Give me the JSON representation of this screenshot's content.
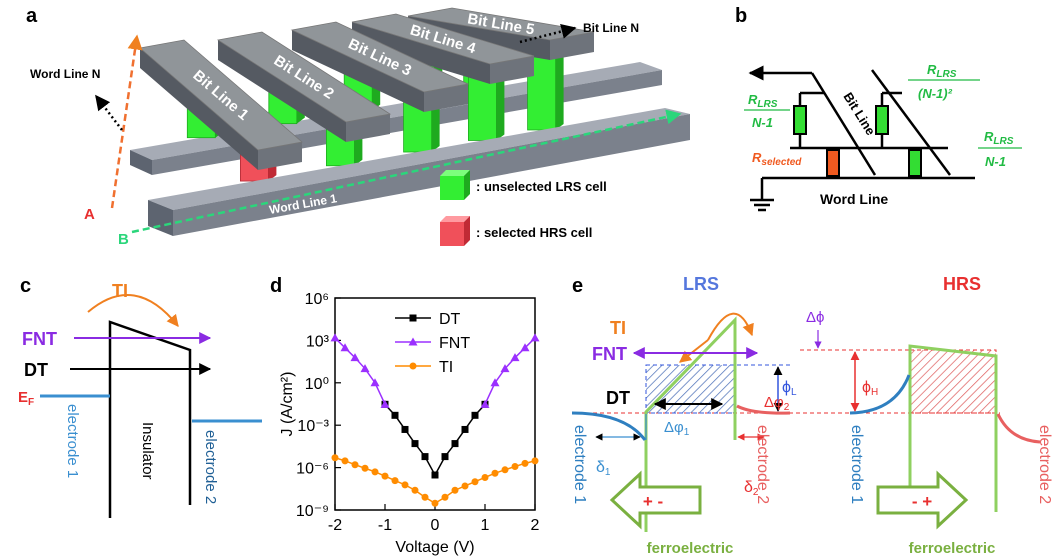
{
  "panel_a": {
    "label": "a",
    "bit_lines": [
      "Bit Line 1",
      "Bit Line 2",
      "Bit Line 3",
      "Bit Line 4",
      "Bit Line 5"
    ],
    "word_line_1": "Word Line 1",
    "word_line_n": "Word Line N",
    "bit_line_n": "Bit Line N",
    "line_a": "A",
    "line_b": "B",
    "legend": {
      "lrs": ": unselected LRS cell",
      "hrs": ": selected HRS cell"
    }
  },
  "panel_b": {
    "label": "b",
    "bit_line": "Bit Line",
    "word_line": "Word Line",
    "fractions": [
      {
        "numerator": {
          "symbol": "R",
          "subscript": "LRS"
        },
        "denominator": "N-1"
      },
      {
        "numerator": {
          "symbol": "R",
          "subscript": "LRS"
        },
        "denominator": "(N-1)²"
      },
      {
        "numerator": {
          "symbol": "R",
          "subscript": "LRS"
        },
        "denominator": "N-1"
      }
    ],
    "r_selected": {
      "symbol": "R",
      "subscript": "selected"
    }
  },
  "panel_c": {
    "label": "c",
    "ti": "TI",
    "fnt": "FNT",
    "dt": "DT",
    "fermi": {
      "symbol": "E",
      "subscript": "F"
    },
    "electrode_1": "electrode 1",
    "insulator": "Insulator",
    "electrode_2": "electrode 2"
  },
  "panel_d": {
    "label": "d"
  },
  "chart_data": {
    "type": "line",
    "x_label": "Voltage (V)",
    "y_label": "J (A/cm²)",
    "x": [
      -2,
      -1.8,
      -1.6,
      -1.4,
      -1.2,
      -1,
      -0.8,
      -0.6,
      -0.4,
      -0.2,
      0,
      0.2,
      0.4,
      0.6,
      0.8,
      1,
      1.2,
      1.4,
      1.6,
      1.8,
      2
    ],
    "series": [
      {
        "name": "DT",
        "color": "#000000",
        "marker": "square",
        "values": [
          null,
          null,
          null,
          null,
          null,
          0.03,
          0.005,
          0.0005,
          5e-05,
          6e-06,
          3e-07,
          6e-06,
          5e-05,
          0.0005,
          0.005,
          0.03,
          null,
          null,
          null,
          null,
          null
        ]
      },
      {
        "name": "FNT",
        "color": "#9b30ff",
        "marker": "triangle",
        "values": [
          1500,
          300,
          60,
          10,
          1,
          0.03,
          null,
          null,
          null,
          null,
          null,
          null,
          null,
          null,
          null,
          0.03,
          1,
          10,
          60,
          300,
          1500
        ]
      },
      {
        "name": "TI",
        "color": "#ff8c00",
        "marker": "circle",
        "values": [
          5e-06,
          3e-06,
          1.6e-06,
          9e-07,
          5e-07,
          2.5e-07,
          1.2e-07,
          6e-08,
          2.5e-08,
          8e-09,
          3e-09,
          8e-09,
          2.5e-08,
          5e-08,
          1e-07,
          2e-07,
          4e-07,
          7e-07,
          1.2e-06,
          2e-06,
          3e-06
        ]
      }
    ],
    "xlim": [
      -2,
      2
    ],
    "xticks": [
      -2,
      -1,
      0,
      1,
      2
    ],
    "ylim": [
      1e-09,
      1000000
    ],
    "y_scale": "log",
    "yticks": [
      {
        "value": 1e-09,
        "label": "10⁻⁹"
      },
      {
        "value": 1e-06,
        "label": "10⁻⁶"
      },
      {
        "value": 0.001,
        "label": "10⁻³"
      },
      {
        "value": 1,
        "label": "10⁰"
      },
      {
        "value": 1000,
        "label": "10³"
      },
      {
        "value": 1000000,
        "label": "10⁶"
      }
    ],
    "legend": "upper center"
  },
  "panel_e": {
    "label": "e",
    "lrs": {
      "title": "LRS",
      "ti": "TI",
      "fnt": "FNT",
      "dt": "DT",
      "delta_phi_1": {
        "symbol": "Δφ",
        "subscript": "1"
      },
      "delta_phi_2": {
        "symbol": "Δφ",
        "subscript": "2"
      },
      "delta_1": {
        "symbol": "δ",
        "subscript": "1"
      },
      "delta_2": {
        "symbol": "δ",
        "subscript": "2"
      },
      "phi_l": {
        "symbol": "ϕ",
        "subscript": "L"
      },
      "electrode_1": "electrode 1",
      "electrode_2": "electrode 2",
      "material": "ferroelectric",
      "polarization": "+ -"
    },
    "hrs": {
      "title": "HRS",
      "delta_phi": "Δϕ",
      "phi_h": {
        "symbol": "ϕ",
        "subscript": "H"
      },
      "electrode_1": "electrode 1",
      "electrode_2": "electrode 2",
      "material": "ferroelectric",
      "polarization": "- +"
    }
  }
}
